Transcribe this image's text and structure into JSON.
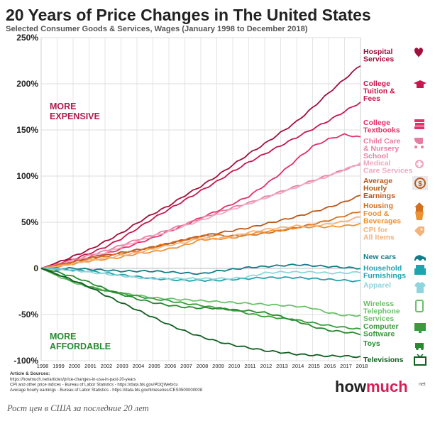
{
  "chart_data": {
    "type": "line",
    "title": "20 Years of Price Changes in The United States",
    "subtitle": "Selected Consumer Goods & Services, Wages (January 1998 to December 2018)",
    "x": [
      "1998",
      "1999",
      "2000",
      "2001",
      "2002",
      "2003",
      "2004",
      "2005",
      "2006",
      "2007",
      "2008",
      "2009",
      "2010",
      "2011",
      "2012",
      "2013",
      "2014",
      "2015",
      "2016",
      "2017",
      "2018"
    ],
    "yticks": [
      "250%",
      "200%",
      "150%",
      "100%",
      "50%",
      "0",
      "-50%",
      "-100%"
    ],
    "ylim": [
      -100,
      250
    ],
    "grid": true,
    "region_labels": {
      "more_expensive": [
        "MORE",
        "EXPENSIVE"
      ],
      "more_affordable": [
        "MORE",
        "AFFORDABLE"
      ]
    },
    "series": [
      {
        "name": "Hospital Services",
        "label_lines": [
          "Hospital",
          "Services"
        ],
        "color": "#a0103c",
        "icon": "heart-cross-icon",
        "values": [
          0,
          6,
          13,
          20,
          29,
          38,
          49,
          59,
          68,
          79,
          89,
          100,
          112,
          124,
          135,
          147,
          159,
          174,
          190,
          205,
          220
        ]
      },
      {
        "name": "College Tuition & Fees",
        "label_lines": [
          "College",
          "Tuition &",
          "Fees"
        ],
        "color": "#c8174f",
        "icon": "graduation-cap-icon",
        "values": [
          0,
          5,
          10,
          16,
          23,
          32,
          43,
          54,
          64,
          74,
          84,
          94,
          105,
          115,
          124,
          133,
          142,
          151,
          160,
          170,
          180
        ]
      },
      {
        "name": "College Textbooks",
        "label_lines": [
          "College",
          "Textbooks"
        ],
        "color": "#e4306a",
        "icon": "books-icon",
        "values": [
          0,
          4,
          8,
          12,
          16,
          21,
          27,
          33,
          40,
          47,
          55,
          62,
          70,
          78,
          90,
          103,
          118,
          132,
          140,
          145,
          142
        ]
      },
      {
        "name": "Child Care & Nursery School",
        "label_lines": [
          "Child Care",
          "& Nursery",
          "School"
        ],
        "color": "#e87da3",
        "icon": "stroller-icon",
        "values": [
          0,
          4,
          9,
          14,
          19,
          25,
          31,
          36,
          42,
          48,
          54,
          60,
          66,
          71,
          77,
          83,
          89,
          95,
          101,
          107,
          113
        ]
      },
      {
        "name": "Medical Care Services",
        "label_lines": [
          "Medical",
          "Care Services"
        ],
        "color": "#f0a7c0",
        "icon": "medical-plus-icon",
        "values": [
          0,
          4,
          8,
          12,
          17,
          23,
          29,
          35,
          40,
          46,
          52,
          58,
          64,
          70,
          76,
          82,
          88,
          94,
          100,
          107,
          114
        ]
      },
      {
        "name": "Average Hourly Earnings",
        "label_lines": [
          "Average",
          "Hourly",
          "Earnings"
        ],
        "color": "#b8581b",
        "icon": "dollar-clock-icon",
        "values": [
          0,
          3,
          7,
          11,
          14,
          17,
          20,
          23,
          27,
          31,
          35,
          38,
          41,
          44,
          48,
          52,
          56,
          61,
          66,
          72,
          79
        ]
      },
      {
        "name": "Housing",
        "label_lines": [
          "Housing"
        ],
        "color": "#d46f1e",
        "icon": "house-icon",
        "values": [
          0,
          3,
          6,
          10,
          13,
          16,
          19,
          23,
          27,
          31,
          35,
          36,
          35,
          36,
          38,
          41,
          44,
          48,
          52,
          57,
          62
        ]
      },
      {
        "name": "Food & Beverages",
        "label_lines": [
          "Food &",
          "Beverages"
        ],
        "color": "#ee9134",
        "icon": "cup-icon",
        "values": [
          0,
          2,
          5,
          8,
          10,
          12,
          16,
          18,
          21,
          25,
          31,
          32,
          33,
          37,
          40,
          41,
          44,
          45,
          45,
          46,
          48
        ]
      },
      {
        "name": "CPI for All Items",
        "label_lines": [
          "CPI for",
          "All Items"
        ],
        "color": "#f5b27a",
        "icon": "price-tag-icon",
        "values": [
          0,
          2,
          5,
          9,
          11,
          14,
          17,
          21,
          25,
          28,
          33,
          32,
          35,
          39,
          42,
          44,
          46,
          46,
          48,
          51,
          56
        ]
      },
      {
        "name": "New cars",
        "label_lines": [
          "New cars"
        ],
        "color": "#127d8a",
        "icon": "car-icon",
        "values": [
          0,
          0,
          0,
          -1,
          -2,
          -3,
          -3,
          -3,
          -4,
          -5,
          -6,
          -3,
          -1,
          1,
          2,
          3,
          4,
          3,
          2,
          1,
          0
        ]
      },
      {
        "name": "Household Furnishings",
        "label_lines": [
          "Household",
          "Furnishings"
        ],
        "color": "#1fa3ae",
        "icon": "furniture-icon",
        "values": [
          0,
          -1,
          -2,
          -3,
          -5,
          -7,
          -9,
          -11,
          -12,
          -13,
          -13,
          -13,
          -12,
          -11,
          -10,
          -10,
          -10,
          -11,
          -12,
          -13,
          -14
        ]
      },
      {
        "name": "Apparel",
        "label_lines": [
          "Apparel"
        ],
        "color": "#8fd5dc",
        "icon": "shirt-icon",
        "values": [
          0,
          -1,
          -2,
          -4,
          -6,
          -8,
          -10,
          -11,
          -11,
          -11,
          -11,
          -11,
          -11,
          -9,
          -5,
          -4,
          -4,
          -4,
          -5,
          -5,
          -4
        ]
      },
      {
        "name": "Wireless Telephone Services",
        "label_lines": [
          "Wireless",
          "Telephone",
          "Services"
        ],
        "color": "#6cc06a",
        "icon": "phone-icon",
        "values": [
          0,
          -8,
          -15,
          -20,
          -24,
          -27,
          -29,
          -32,
          -33,
          -34,
          -35,
          -36,
          -37,
          -38,
          -39,
          -40,
          -41,
          -43,
          -48,
          -51,
          -51
        ]
      },
      {
        "name": "Computer Software",
        "label_lines": [
          "Computer",
          "Software"
        ],
        "color": "#3a9a3c",
        "icon": "monitor-icon",
        "values": [
          0,
          -7,
          -14,
          -20,
          -24,
          -27,
          -30,
          -33,
          -35,
          -38,
          -40,
          -43,
          -45,
          -49,
          -52,
          -54,
          -56,
          -59,
          -62,
          -64,
          -66
        ]
      },
      {
        "name": "Toys",
        "label_lines": [
          "Toys"
        ],
        "color": "#258b2e",
        "icon": "toy-icon",
        "values": [
          0,
          -4,
          -9,
          -15,
          -22,
          -28,
          -33,
          -37,
          -40,
          -42,
          -43,
          -43,
          -45,
          -46,
          -48,
          -52,
          -57,
          -63,
          -67,
          -69,
          -71
        ]
      },
      {
        "name": "Televisions",
        "label_lines": [
          "Televisions"
        ],
        "color": "#0f5f1f",
        "icon": "tv-icon",
        "values": [
          0,
          -6,
          -13,
          -20,
          -29,
          -37,
          -45,
          -53,
          -61,
          -68,
          -74,
          -79,
          -83,
          -86,
          -89,
          -91,
          -93,
          -94,
          -95,
          -95,
          -96
        ]
      }
    ]
  },
  "sources": {
    "heading": "Article & Sources:",
    "lines": [
      "https://howmuch.net/articles/price-changes-in-usa-in-past-20-years",
      "CPI and other price indices - Bureau of Labor Statistics - https://data.bls.gov/PDQWeb/cu",
      "Average hourly earnings - Bureau of Labor Statistics - https://data.bls.gov/timeseries/CES0500000008"
    ]
  },
  "brand": {
    "name_a": "how",
    "name_b": "much",
    "suffix": "net",
    "color_a": "#222222",
    "color_b": "#d61f55"
  },
  "caption": "Рост цен в США за последние 20 лет"
}
